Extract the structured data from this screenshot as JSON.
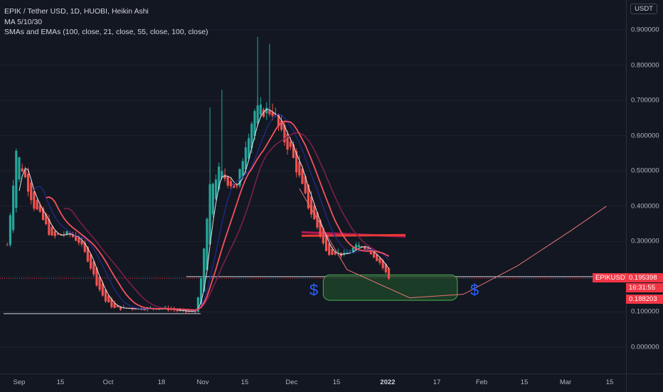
{
  "header": {
    "symbol_line": "EPIK / Tether USD, 1D, HUOBI, Heikin Ashi",
    "indicator_1": "MA 5/10/30",
    "indicator_2": "SMAs and EMAs (100, close, 21, close, 55, close, 100, close)",
    "unit_button": "USDT"
  },
  "price_tags": {
    "symbol": "EPIKUSDT",
    "last_price": "0.195398",
    "countdown": "16:31:55",
    "low_price": "0.188203"
  },
  "annotations": {
    "dollar_left": "$",
    "dollar_right": "$"
  },
  "colors": {
    "background": "#131722",
    "up_candle": "#26a69a",
    "down_candle": "#ef5350",
    "ma_white": "#e0e3eb",
    "ma_red": "#f5515f",
    "ma_blue": "#1e2a8c",
    "ma_purple": "#7b1f4a",
    "zone_fill": "#1f4a2a",
    "zone_border": "#4caf50",
    "dollar_color": "#2962ff",
    "tag_red": "#f23645"
  },
  "chart_data": {
    "type": "candlestick",
    "title": "EPIK / Tether USD, 1D, HUOBI, Heikin Ashi",
    "ylabel": "USDT",
    "ylim": [
      -0.05,
      0.95
    ],
    "y_ticks": [
      "0.900000",
      "0.800000",
      "0.700000",
      "0.600000",
      "0.500000",
      "0.400000",
      "0.300000",
      "0.200000",
      "0.100000",
      "0.000000"
    ],
    "x_ticks": [
      "Sep",
      "15",
      "Oct",
      "18",
      "Nov",
      "15",
      "Dec",
      "15",
      "2022",
      "17",
      "Feb",
      "15",
      "Mar",
      "15"
    ],
    "x_tick_bold": "2022",
    "close_path": [
      {
        "x": "Aug 28",
        "y": 0.29
      },
      {
        "x": "Aug 31",
        "y": 0.56
      },
      {
        "x": "Sep 3",
        "y": 0.48
      },
      {
        "x": "Sep 6",
        "y": 0.4
      },
      {
        "x": "Sep 9",
        "y": 0.36
      },
      {
        "x": "Sep 12",
        "y": 0.31
      },
      {
        "x": "Sep 15",
        "y": 0.32
      },
      {
        "x": "Sep 18",
        "y": 0.32
      },
      {
        "x": "Sep 21",
        "y": 0.3
      },
      {
        "x": "Sep 24",
        "y": 0.25
      },
      {
        "x": "Sep 27",
        "y": 0.18
      },
      {
        "x": "Sep 30",
        "y": 0.13
      },
      {
        "x": "Oct 3",
        "y": 0.11
      },
      {
        "x": "Oct 8",
        "y": 0.11
      },
      {
        "x": "Oct 14",
        "y": 0.11
      },
      {
        "x": "Oct 20",
        "y": 0.11
      },
      {
        "x": "Oct 26",
        "y": 0.1
      },
      {
        "x": "Oct 30",
        "y": 0.1
      },
      {
        "x": "Nov 1",
        "y": 0.19
      },
      {
        "x": "Nov 4",
        "y": 0.45
      },
      {
        "x": "Nov 7",
        "y": 0.5
      },
      {
        "x": "Nov 10",
        "y": 0.47
      },
      {
        "x": "Nov 13",
        "y": 0.45
      },
      {
        "x": "Nov 16",
        "y": 0.58
      },
      {
        "x": "Nov 19",
        "y": 0.67
      },
      {
        "x": "Nov 22",
        "y": 0.67
      },
      {
        "x": "Nov 25",
        "y": 0.67
      },
      {
        "x": "Nov 28",
        "y": 0.6
      },
      {
        "x": "Dec 1",
        "y": 0.56
      },
      {
        "x": "Dec 4",
        "y": 0.48
      },
      {
        "x": "Dec 7",
        "y": 0.4
      },
      {
        "x": "Dec 10",
        "y": 0.34
      },
      {
        "x": "Dec 13",
        "y": 0.27
      },
      {
        "x": "Dec 16",
        "y": 0.27
      },
      {
        "x": "Dec 19",
        "y": 0.26
      },
      {
        "x": "Dec 22",
        "y": 0.28
      },
      {
        "x": "Dec 25",
        "y": 0.29
      },
      {
        "x": "Dec 28",
        "y": 0.27
      },
      {
        "x": "Dec 31",
        "y": 0.24
      },
      {
        "x": "Jan 3",
        "y": 0.195
      }
    ],
    "horizontal_levels": [
      0.2,
      0.095
    ],
    "resistance_level": 0.318,
    "zone": {
      "from": "Dec 12",
      "to": "Jan 26",
      "low": 0.133,
      "high": 0.205
    },
    "projection_curve": [
      {
        "x": "Dec 4",
        "y": 0.45
      },
      {
        "x": "Dec 20",
        "y": 0.22
      },
      {
        "x": "Jan 10",
        "y": 0.14
      },
      {
        "x": "Jan 28",
        "y": 0.15
      },
      {
        "x": "Feb 15",
        "y": 0.23
      },
      {
        "x": "Mar 5",
        "y": 0.33
      },
      {
        "x": "Mar 17",
        "y": 0.4
      }
    ],
    "last_price": 0.195398,
    "last_low": 0.188203
  }
}
